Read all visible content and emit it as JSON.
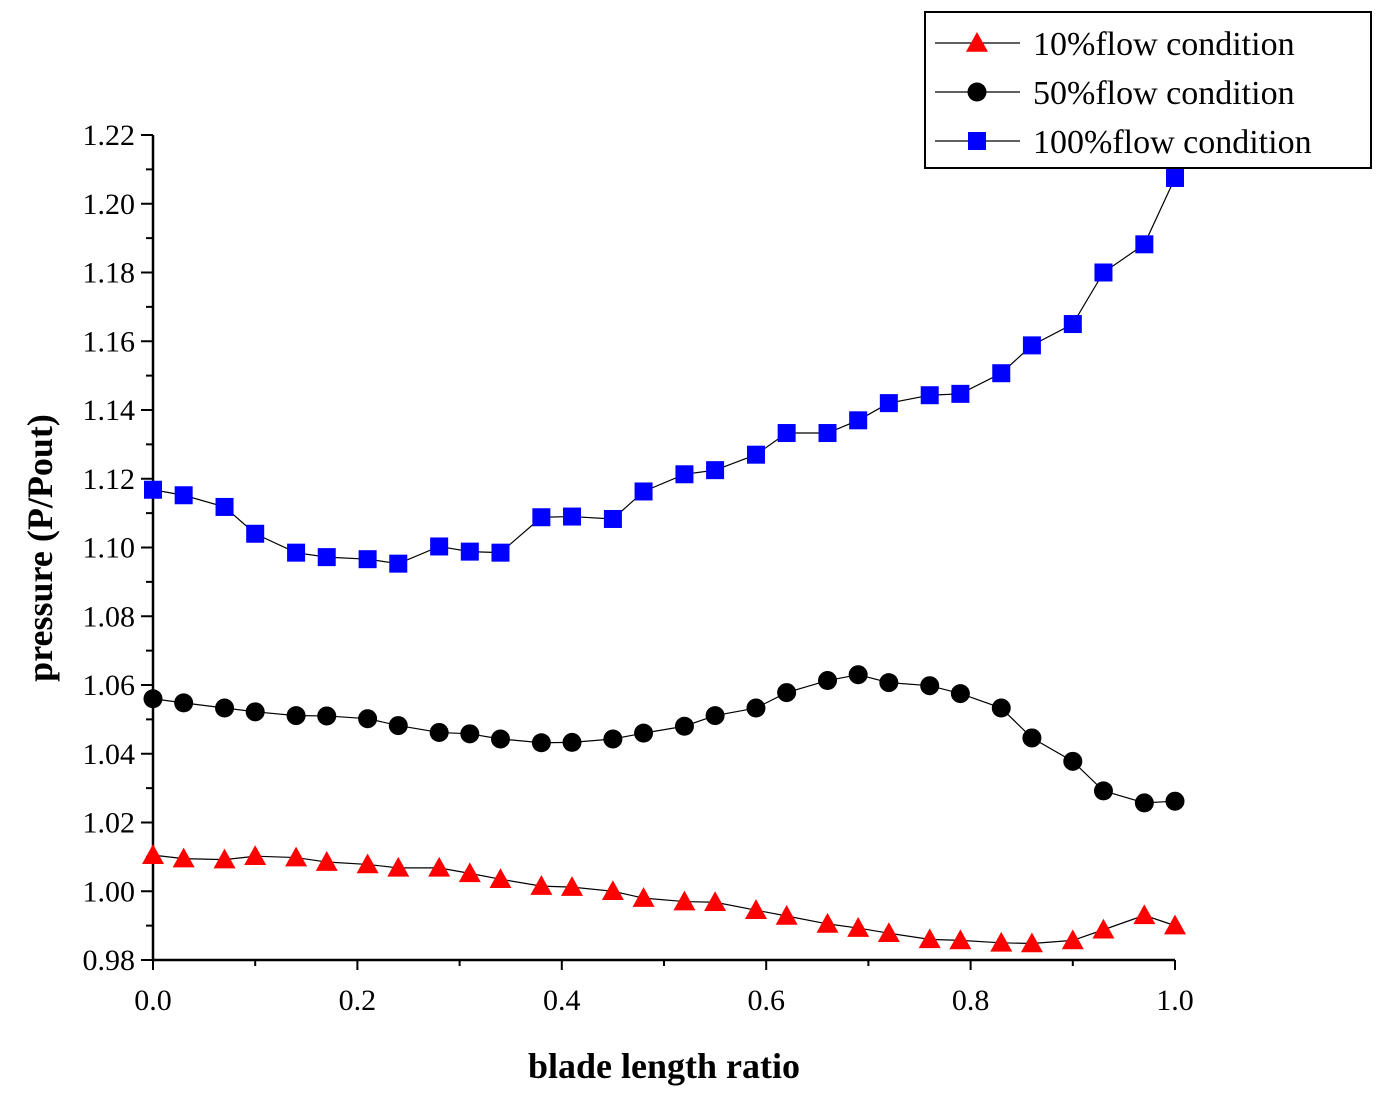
{
  "chart_data": {
    "type": "line",
    "title": "",
    "xlabel": "blade length ratio",
    "ylabel": "pressure (P/Pout)",
    "xlim": [
      0.0,
      1.0
    ],
    "ylim": [
      0.98,
      1.22
    ],
    "grid": false,
    "legend_position": "top-right",
    "x_ticks": [
      "0.0",
      "0.2",
      "0.4",
      "0.6",
      "0.8",
      "1.0"
    ],
    "y_ticks": [
      "0.98",
      "1.00",
      "1.02",
      "1.04",
      "1.06",
      "1.08",
      "1.10",
      "1.12",
      "1.14",
      "1.16",
      "1.18",
      "1.20",
      "1.22"
    ],
    "x": [
      0.0,
      0.03,
      0.07,
      0.1,
      0.14,
      0.17,
      0.21,
      0.24,
      0.28,
      0.31,
      0.34,
      0.38,
      0.41,
      0.45,
      0.48,
      0.52,
      0.55,
      0.59,
      0.62,
      0.66,
      0.69,
      0.72,
      0.76,
      0.79,
      0.83,
      0.86,
      0.9,
      0.93,
      0.97,
      1.0
    ],
    "series": [
      {
        "name": "10%flow condition",
        "marker": "triangle",
        "color": "#ff0000",
        "values": [
          1.0105,
          1.0095,
          1.0092,
          1.0102,
          1.0098,
          1.0085,
          1.0078,
          1.0068,
          1.0068,
          1.0052,
          1.0035,
          1.0015,
          1.0012,
          1.0,
          0.998,
          0.997,
          0.9968,
          0.9945,
          0.9928,
          0.9905,
          0.9893,
          0.9878,
          0.986,
          0.9857,
          0.985,
          0.9848,
          0.9857,
          0.9888,
          0.993,
          0.99
        ]
      },
      {
        "name": "50%flow condition",
        "marker": "circle",
        "color": "#000000",
        "values": [
          1.056,
          1.0548,
          1.0533,
          1.0522,
          1.0511,
          1.051,
          1.0502,
          1.0482,
          1.0462,
          1.0458,
          1.0443,
          1.0432,
          1.0433,
          1.0443,
          1.046,
          1.048,
          1.0511,
          1.0533,
          1.0578,
          1.0613,
          1.063,
          1.0607,
          1.0598,
          1.0575,
          1.0533,
          1.0446,
          1.0378,
          1.0292,
          1.0257,
          1.0262
        ]
      },
      {
        "name": "100%flow condition",
        "marker": "square",
        "color": "#0000ff",
        "values": [
          1.1168,
          1.1152,
          1.1118,
          1.104,
          1.0985,
          1.0972,
          1.0966,
          1.0953,
          1.1003,
          1.0988,
          1.0985,
          1.1088,
          1.109,
          1.1083,
          1.1163,
          1.1213,
          1.1225,
          1.127,
          1.1333,
          1.1333,
          1.137,
          1.142,
          1.1443,
          1.1447,
          1.1507,
          1.1588,
          1.165,
          1.18,
          1.1882,
          1.2075
        ]
      }
    ]
  }
}
